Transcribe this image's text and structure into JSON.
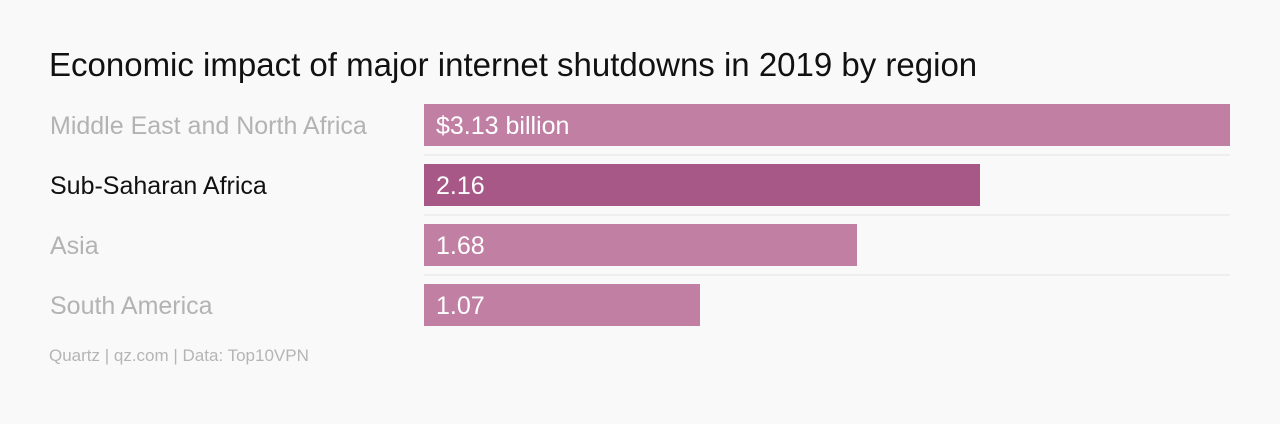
{
  "chart_data": {
    "type": "bar",
    "orientation": "horizontal",
    "title": "Economic impact of major internet shutdowns in 2019 by region",
    "categories": [
      "Middle East and North Africa",
      "Sub-Saharan Africa",
      "Asia",
      "South America"
    ],
    "values": [
      3.13,
      2.16,
      1.68,
      1.07
    ],
    "value_labels": [
      "$3.13 billion",
      "2.16",
      "1.68",
      "1.07"
    ],
    "highlighted": "Sub-Saharan Africa",
    "xlim": [
      0,
      3.13
    ],
    "grid": false,
    "legend": "none"
  },
  "colors": {
    "bar": "#c07fa3",
    "bar_highlight": "#a85887",
    "label": "#b3b3b3",
    "label_highlight": "#111111",
    "separator": "#e2e2e2"
  },
  "footer": {
    "source": "Quartz | qz.com | Data: Top10VPN"
  }
}
